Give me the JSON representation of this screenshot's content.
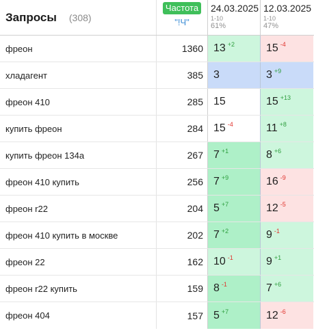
{
  "header": {
    "title": "Запросы",
    "count": "(308)",
    "freq_label": "Частота",
    "freq_sub": "\"!Ч\"",
    "dates": [
      {
        "date": "24.03.2025",
        "range": "1-10",
        "pct": "61%"
      },
      {
        "date": "12.03.2025",
        "range": "1-10",
        "pct": "47%"
      }
    ]
  },
  "colors": {
    "green": "#cdf6dd",
    "green_strong": "#aef0c8",
    "blue": "#c9dbf9",
    "pink": "#fde2e2",
    "up": "#2e9e3e",
    "down": "#e0332d",
    "badge": "#3fbf5a"
  },
  "rows": [
    {
      "query": "фреон",
      "freq": "1360",
      "p1": "13",
      "c1": "+2",
      "d1": "up",
      "b1": "green",
      "p2": "15",
      "c2": "-4",
      "d2": "down",
      "b2": "pink"
    },
    {
      "query": "хладагент",
      "freq": "385",
      "p1": "3",
      "c1": "",
      "d1": "",
      "b1": "blue",
      "p2": "3",
      "c2": "+9",
      "d2": "up",
      "b2": "blue"
    },
    {
      "query": "фреон 410",
      "freq": "285",
      "p1": "15",
      "c1": "",
      "d1": "",
      "b1": "white",
      "p2": "15",
      "c2": "+13",
      "d2": "up",
      "b2": "green"
    },
    {
      "query": "купить фреон",
      "freq": "284",
      "p1": "15",
      "c1": "-4",
      "d1": "down",
      "b1": "white",
      "p2": "11",
      "c2": "+8",
      "d2": "up",
      "b2": "green"
    },
    {
      "query": "купить фреон 134а",
      "freq": "267",
      "p1": "7",
      "c1": "+1",
      "d1": "up",
      "b1": "green2",
      "p2": "8",
      "c2": "+6",
      "d2": "up",
      "b2": "green"
    },
    {
      "query": "фреон 410 купить",
      "freq": "256",
      "p1": "7",
      "c1": "+9",
      "d1": "up",
      "b1": "green2",
      "p2": "16",
      "c2": "-9",
      "d2": "down",
      "b2": "pink"
    },
    {
      "query": "фреон r22",
      "freq": "204",
      "p1": "5",
      "c1": "+7",
      "d1": "up",
      "b1": "green2",
      "p2": "12",
      "c2": "-5",
      "d2": "down",
      "b2": "pink"
    },
    {
      "query": "фреон 410 купить в москве",
      "freq": "202",
      "p1": "7",
      "c1": "+2",
      "d1": "up",
      "b1": "green2",
      "p2": "9",
      "c2": "-1",
      "d2": "down",
      "b2": "green"
    },
    {
      "query": "фреон 22",
      "freq": "162",
      "p1": "10",
      "c1": "-1",
      "d1": "down",
      "b1": "green",
      "p2": "9",
      "c2": "+1",
      "d2": "up",
      "b2": "green"
    },
    {
      "query": "фреон r22 купить",
      "freq": "159",
      "p1": "8",
      "c1": "-1",
      "d1": "down",
      "b1": "green2",
      "p2": "7",
      "c2": "+6",
      "d2": "up",
      "b2": "green"
    },
    {
      "query": "фреон 404",
      "freq": "157",
      "p1": "5",
      "c1": "+7",
      "d1": "up",
      "b1": "green2",
      "p2": "12",
      "c2": "-6",
      "d2": "down",
      "b2": "pink"
    }
  ]
}
